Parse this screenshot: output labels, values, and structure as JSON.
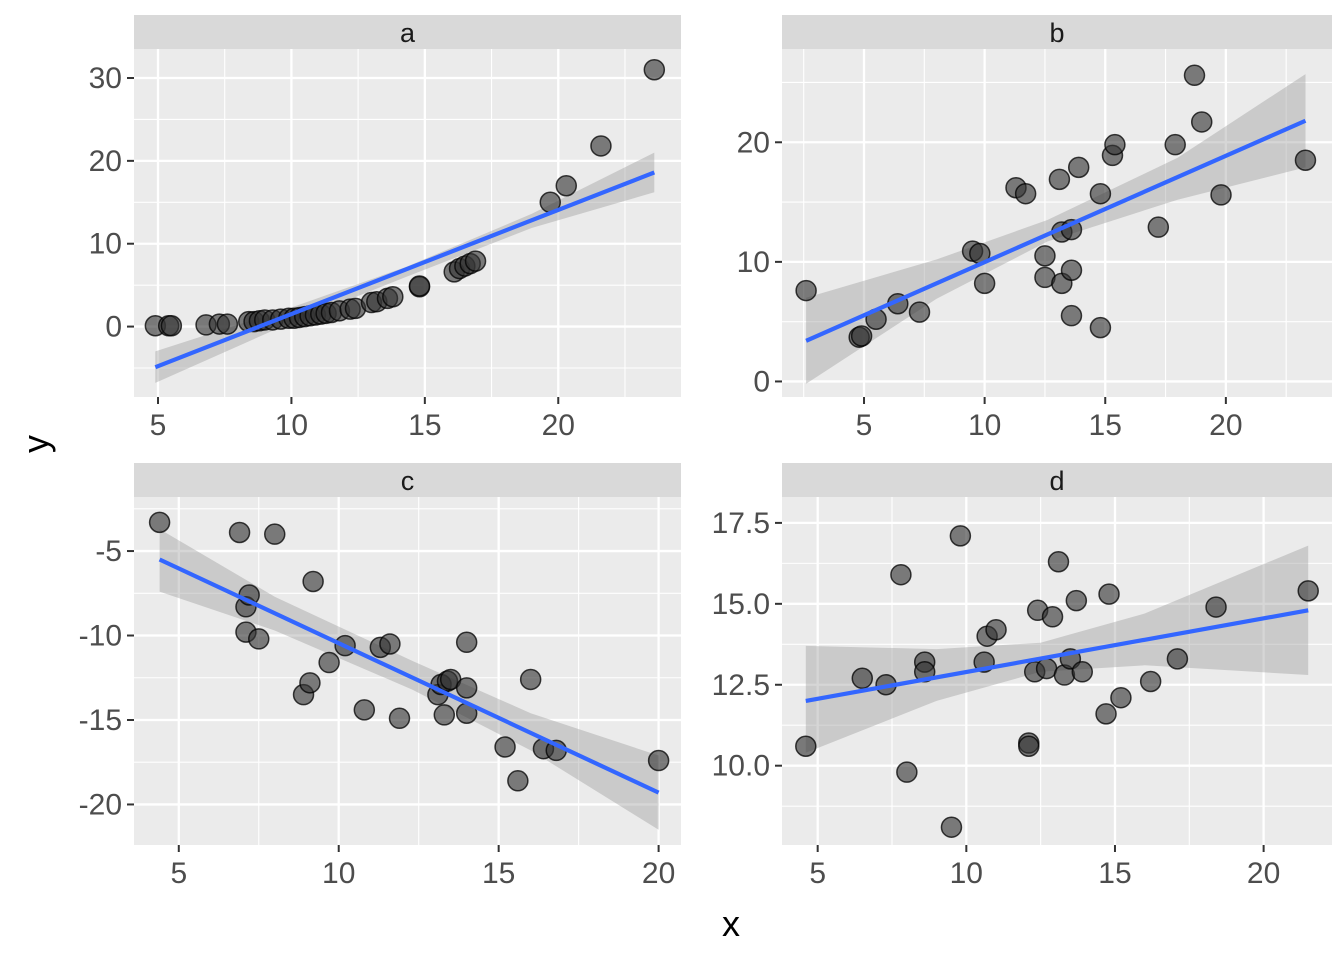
{
  "figure": {
    "xlabel": "x",
    "ylabel": "y"
  },
  "colors": {
    "panel_bg": "#EBEBEB",
    "strip_bg": "#D9D9D9",
    "grid": "#FFFFFF",
    "point": "#333333",
    "line": "#3366FF",
    "ribbon": "#999999"
  },
  "chart_data": [
    {
      "type": "scatter",
      "facet": "a",
      "xlim": [
        4.1,
        24.6
      ],
      "ylim": [
        -8.5,
        33.5
      ],
      "xticks": [
        5,
        10,
        15,
        20
      ],
      "yticks": [
        0,
        10,
        20,
        30
      ],
      "x_tick_labels": [
        "5",
        "10",
        "15",
        "20"
      ],
      "y_tick_labels": [
        "0",
        "10",
        "20",
        "30"
      ],
      "points": [
        {
          "x": 4.9,
          "y": 0.1
        },
        {
          "x": 5.4,
          "y": 0.1
        },
        {
          "x": 5.5,
          "y": 0.1
        },
        {
          "x": 6.8,
          "y": 0.2
        },
        {
          "x": 7.3,
          "y": 0.3
        },
        {
          "x": 7.6,
          "y": 0.3
        },
        {
          "x": 8.4,
          "y": 0.6
        },
        {
          "x": 8.6,
          "y": 0.6
        },
        {
          "x": 8.8,
          "y": 0.7
        },
        {
          "x": 9.0,
          "y": 0.8
        },
        {
          "x": 9.3,
          "y": 0.8
        },
        {
          "x": 9.6,
          "y": 0.9
        },
        {
          "x": 9.9,
          "y": 1.0
        },
        {
          "x": 10.1,
          "y": 1.0
        },
        {
          "x": 10.3,
          "y": 1.1
        },
        {
          "x": 10.5,
          "y": 1.2
        },
        {
          "x": 10.7,
          "y": 1.3
        },
        {
          "x": 10.9,
          "y": 1.4
        },
        {
          "x": 11.1,
          "y": 1.5
        },
        {
          "x": 11.3,
          "y": 1.6
        },
        {
          "x": 11.5,
          "y": 1.7
        },
        {
          "x": 11.8,
          "y": 1.9
        },
        {
          "x": 12.2,
          "y": 2.1
        },
        {
          "x": 12.4,
          "y": 2.2
        },
        {
          "x": 13.0,
          "y": 2.9
        },
        {
          "x": 13.2,
          "y": 3.0
        },
        {
          "x": 13.6,
          "y": 3.4
        },
        {
          "x": 13.8,
          "y": 3.6
        },
        {
          "x": 14.8,
          "y": 4.8
        },
        {
          "x": 14.8,
          "y": 4.9
        },
        {
          "x": 16.1,
          "y": 6.6
        },
        {
          "x": 16.3,
          "y": 7.0
        },
        {
          "x": 16.5,
          "y": 7.3
        },
        {
          "x": 16.7,
          "y": 7.6
        },
        {
          "x": 16.9,
          "y": 7.9
        },
        {
          "x": 19.7,
          "y": 15.0
        },
        {
          "x": 20.3,
          "y": 17.0
        },
        {
          "x": 21.6,
          "y": 21.8
        },
        {
          "x": 23.6,
          "y": 31.0
        }
      ],
      "fit": {
        "x": [
          4.9,
          23.6
        ],
        "y": [
          -4.9,
          18.6
        ]
      },
      "ribbon": {
        "x": [
          4.9,
          10.0,
          14.3,
          19.0,
          23.6
        ],
        "lower": [
          -6.8,
          0.5,
          6.0,
          11.9,
          16.2
        ],
        "upper": [
          -3.0,
          2.3,
          7.2,
          13.6,
          21.0
        ]
      }
    },
    {
      "type": "scatter",
      "facet": "b",
      "xlim": [
        1.6,
        24.4
      ],
      "ylim": [
        -1.3,
        27.8
      ],
      "xticks": [
        5,
        10,
        15,
        20
      ],
      "yticks": [
        0,
        10,
        20
      ],
      "x_tick_labels": [
        "5",
        "10",
        "15",
        "20"
      ],
      "y_tick_labels": [
        "0",
        "10",
        "20"
      ],
      "points": [
        {
          "x": 2.6,
          "y": 7.6
        },
        {
          "x": 4.8,
          "y": 3.7
        },
        {
          "x": 4.9,
          "y": 3.8
        },
        {
          "x": 5.5,
          "y": 5.2
        },
        {
          "x": 6.4,
          "y": 6.5
        },
        {
          "x": 7.3,
          "y": 5.8
        },
        {
          "x": 9.5,
          "y": 10.9
        },
        {
          "x": 9.8,
          "y": 10.7
        },
        {
          "x": 10.0,
          "y": 8.2
        },
        {
          "x": 11.3,
          "y": 16.2
        },
        {
          "x": 11.7,
          "y": 15.7
        },
        {
          "x": 12.5,
          "y": 8.7
        },
        {
          "x": 12.5,
          "y": 10.5
        },
        {
          "x": 13.1,
          "y": 16.9
        },
        {
          "x": 13.2,
          "y": 12.5
        },
        {
          "x": 13.2,
          "y": 8.2
        },
        {
          "x": 13.6,
          "y": 12.7
        },
        {
          "x": 13.6,
          "y": 9.3
        },
        {
          "x": 13.6,
          "y": 5.5
        },
        {
          "x": 13.9,
          "y": 17.9
        },
        {
          "x": 14.8,
          "y": 15.7
        },
        {
          "x": 14.8,
          "y": 4.5
        },
        {
          "x": 15.3,
          "y": 18.9
        },
        {
          "x": 15.4,
          "y": 19.8
        },
        {
          "x": 17.2,
          "y": 12.9
        },
        {
          "x": 17.9,
          "y": 19.8
        },
        {
          "x": 18.7,
          "y": 25.6
        },
        {
          "x": 19.0,
          "y": 21.7
        },
        {
          "x": 19.8,
          "y": 15.6
        },
        {
          "x": 23.3,
          "y": 18.5
        }
      ],
      "fit": {
        "x": [
          2.6,
          23.3
        ],
        "y": [
          3.4,
          21.8
        ]
      },
      "ribbon": {
        "x": [
          2.6,
          8.0,
          12.6,
          18.0,
          23.3
        ],
        "lower": [
          -0.2,
          6.9,
          11.7,
          15.2,
          17.9
        ],
        "upper": [
          7.0,
          10.2,
          13.5,
          18.7,
          25.7
        ]
      }
    },
    {
      "type": "scatter",
      "facet": "c",
      "xlim": [
        3.6,
        20.7
      ],
      "ylim": [
        -22.4,
        -1.8
      ],
      "xticks": [
        5,
        10,
        15,
        20
      ],
      "yticks": [
        -5,
        -10,
        -15,
        -20
      ],
      "x_tick_labels": [
        "5",
        "10",
        "15",
        "20"
      ],
      "y_tick_labels": [
        "-5",
        "-10",
        "-15",
        "-20"
      ],
      "points": [
        {
          "x": 4.4,
          "y": -3.3
        },
        {
          "x": 6.9,
          "y": -3.9
        },
        {
          "x": 7.1,
          "y": -8.3
        },
        {
          "x": 7.1,
          "y": -9.8
        },
        {
          "x": 7.2,
          "y": -7.6
        },
        {
          "x": 7.5,
          "y": -10.2
        },
        {
          "x": 8.0,
          "y": -4.0
        },
        {
          "x": 8.9,
          "y": -13.5
        },
        {
          "x": 9.1,
          "y": -12.8
        },
        {
          "x": 9.2,
          "y": -6.8
        },
        {
          "x": 9.7,
          "y": -11.6
        },
        {
          "x": 10.2,
          "y": -10.6
        },
        {
          "x": 10.8,
          "y": -14.4
        },
        {
          "x": 11.3,
          "y": -10.7
        },
        {
          "x": 11.6,
          "y": -10.5
        },
        {
          "x": 11.9,
          "y": -14.9
        },
        {
          "x": 13.1,
          "y": -13.5
        },
        {
          "x": 13.2,
          "y": -12.9
        },
        {
          "x": 13.3,
          "y": -14.7
        },
        {
          "x": 13.4,
          "y": -12.7
        },
        {
          "x": 13.5,
          "y": -12.6
        },
        {
          "x": 14.0,
          "y": -10.4
        },
        {
          "x": 14.0,
          "y": -13.1
        },
        {
          "x": 14.0,
          "y": -14.6
        },
        {
          "x": 15.2,
          "y": -16.6
        },
        {
          "x": 15.6,
          "y": -18.6
        },
        {
          "x": 16.0,
          "y": -12.6
        },
        {
          "x": 16.4,
          "y": -16.7
        },
        {
          "x": 16.8,
          "y": -16.8
        },
        {
          "x": 20.0,
          "y": -17.4
        }
      ],
      "fit": {
        "x": [
          4.4,
          20.0
        ],
        "y": [
          -5.5,
          -19.3
        ]
      },
      "ribbon": {
        "x": [
          4.4,
          8.0,
          12.3,
          16.0,
          20.0
        ],
        "lower": [
          -7.4,
          -9.7,
          -13.2,
          -16.8,
          -21.5
        ],
        "upper": [
          -3.7,
          -7.7,
          -11.5,
          -14.6,
          -17.1
        ]
      }
    },
    {
      "type": "scatter",
      "facet": "d",
      "xlim": [
        3.8,
        22.3
      ],
      "ylim": [
        7.55,
        18.3
      ],
      "xticks": [
        5,
        10,
        15,
        20
      ],
      "yticks": [
        10.0,
        12.5,
        15.0,
        17.5
      ],
      "x_tick_labels": [
        "5",
        "10",
        "15",
        "20"
      ],
      "y_tick_labels": [
        "10.0",
        "12.5",
        "15.0",
        "17.5"
      ],
      "points": [
        {
          "x": 4.6,
          "y": 10.6
        },
        {
          "x": 6.5,
          "y": 12.7
        },
        {
          "x": 7.3,
          "y": 12.5
        },
        {
          "x": 7.8,
          "y": 15.9
        },
        {
          "x": 8.0,
          "y": 9.8
        },
        {
          "x": 8.6,
          "y": 13.2
        },
        {
          "x": 8.6,
          "y": 12.9
        },
        {
          "x": 9.5,
          "y": 8.1
        },
        {
          "x": 9.8,
          "y": 17.1
        },
        {
          "x": 10.6,
          "y": 13.2
        },
        {
          "x": 10.7,
          "y": 14.0
        },
        {
          "x": 11.0,
          "y": 14.2
        },
        {
          "x": 12.1,
          "y": 10.7
        },
        {
          "x": 12.1,
          "y": 10.6
        },
        {
          "x": 12.3,
          "y": 12.9
        },
        {
          "x": 12.4,
          "y": 14.8
        },
        {
          "x": 12.7,
          "y": 13.0
        },
        {
          "x": 12.9,
          "y": 14.6
        },
        {
          "x": 13.1,
          "y": 16.3
        },
        {
          "x": 13.3,
          "y": 12.8
        },
        {
          "x": 13.5,
          "y": 13.3
        },
        {
          "x": 13.7,
          "y": 15.1
        },
        {
          "x": 13.9,
          "y": 12.9
        },
        {
          "x": 14.7,
          "y": 11.6
        },
        {
          "x": 14.8,
          "y": 15.3
        },
        {
          "x": 15.2,
          "y": 12.1
        },
        {
          "x": 16.2,
          "y": 12.6
        },
        {
          "x": 17.1,
          "y": 13.3
        },
        {
          "x": 18.4,
          "y": 14.9
        },
        {
          "x": 21.5,
          "y": 15.4
        }
      ],
      "fit": {
        "x": [
          4.6,
          21.5
        ],
        "y": [
          12.0,
          14.8
        ]
      },
      "ribbon": {
        "x": [
          4.6,
          9.0,
          12.5,
          16.0,
          21.5
        ],
        "lower": [
          10.4,
          12.0,
          12.9,
          13.1,
          12.8
        ],
        "upper": [
          13.7,
          13.6,
          13.8,
          14.7,
          16.8
        ]
      }
    }
  ]
}
